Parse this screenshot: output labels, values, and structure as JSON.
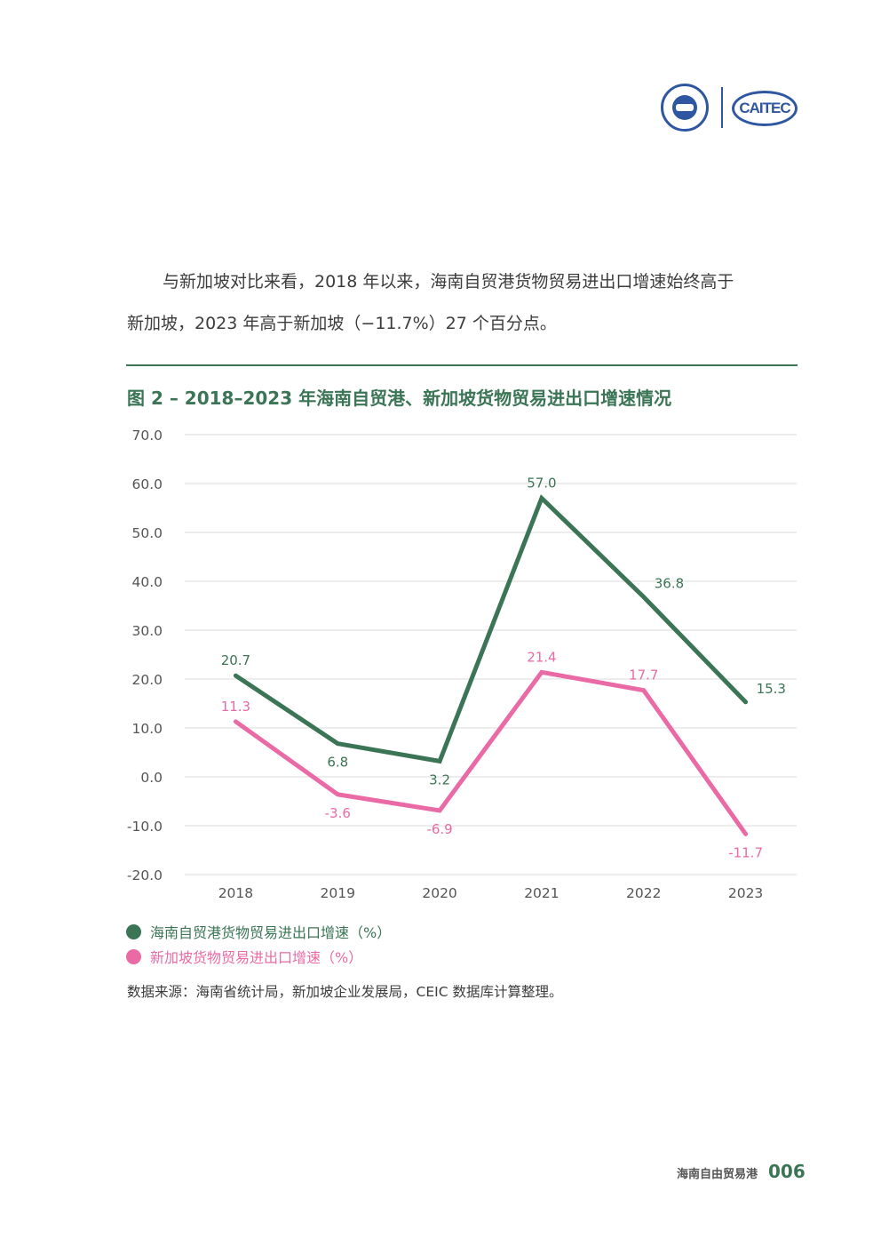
{
  "header": {
    "logo_left": "China Top Think Tanks",
    "logo_right": "CAITEC"
  },
  "paragraph": {
    "line1": "与新加坡对比来看，2018 年以来，海南自贸港货物贸易进出口增速始终高于",
    "line2": "新加坡，2023 年高于新加坡（−11.7%）27 个百分点。"
  },
  "figure": {
    "title": "图 2 – 2018–2023 年海南自贸港、新加坡货物贸易进出口增速情况"
  },
  "chart_data": {
    "type": "line",
    "title": "图 2 – 2018–2023 年海南自贸港、新加坡货物贸易进出口增速情况",
    "xlabel": "",
    "ylabel": "",
    "x": [
      "2018",
      "2019",
      "2020",
      "2021",
      "2022",
      "2023"
    ],
    "yticks": [
      "70.0",
      "60.0",
      "50.0",
      "40.0",
      "30.0",
      "20.0",
      "10.0",
      "0.0",
      "-10.0",
      "-20.0"
    ],
    "ylim": [
      -20,
      70
    ],
    "grid": true,
    "legend_position": "bottom-left",
    "series": [
      {
        "name": "海南自贸港货物贸易进出口增速（%）",
        "color": "#3b7555",
        "values": [
          20.7,
          6.8,
          3.2,
          57.0,
          36.8,
          15.3
        ],
        "labels": [
          "20.7",
          "6.8",
          "3.2",
          "57.0",
          "36.8",
          "15.3"
        ],
        "label_pos": [
          "above",
          "below",
          "below",
          "above",
          "right",
          "right"
        ]
      },
      {
        "name": "新加坡货物贸易进出口增速（%）",
        "color": "#e96aa5",
        "values": [
          11.3,
          -3.6,
          -6.9,
          21.4,
          17.7,
          -11.7
        ],
        "labels": [
          "11.3",
          "-3.6",
          "-6.9",
          "21.4",
          "17.7",
          "-11.7"
        ],
        "label_pos": [
          "above",
          "below",
          "below",
          "above",
          "above",
          "below"
        ]
      }
    ]
  },
  "legend": {
    "items": [
      {
        "label": "海南自贸港货物贸易进出口增速（%）",
        "color": "#3b7555"
      },
      {
        "label": "新加坡货物贸易进出口增速（%）",
        "color": "#e96aa5"
      }
    ]
  },
  "source": "数据来源：海南省统计局，新加坡企业发展局，CEIC 数据库计算整理。",
  "footer": {
    "publication": "海南自由贸易港",
    "page_number": "006"
  }
}
